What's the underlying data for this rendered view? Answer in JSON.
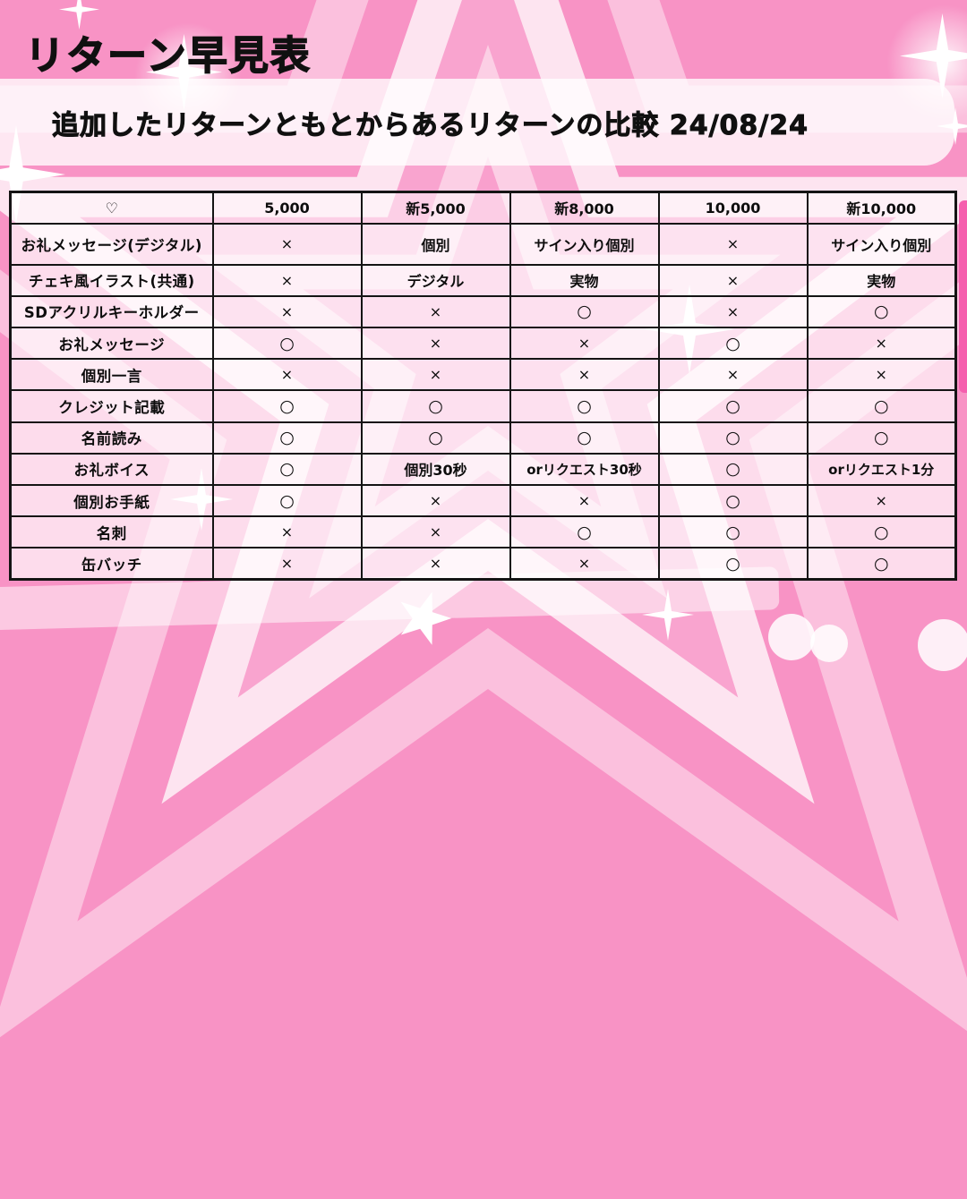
{
  "page": {
    "title": "リターン早見表",
    "subtitle": "追加したリターンともとからあるリターンの比較 24/08/24"
  },
  "chart_data": {
    "type": "table",
    "title": "リターン早見表",
    "subtitle": "追加したリターンともとからあるリターンの比較 24/08/24",
    "columns": [
      "♡",
      "5,000",
      "新5,000",
      "新8,000",
      "10,000",
      "新10,000"
    ],
    "rows": [
      {
        "label": "お礼メッセージ(デジタル)",
        "values": [
          "×",
          "個別",
          "サイン入り個別",
          "×",
          "サイン入り個別"
        ]
      },
      {
        "label": "チェキ風イラスト(共通)",
        "values": [
          "×",
          "デジタル",
          "実物",
          "×",
          "実物"
        ]
      },
      {
        "label": "SDアクリルキーホルダー",
        "values": [
          "×",
          "×",
          "○",
          "×",
          "○"
        ]
      },
      {
        "label": "お礼メッセージ",
        "values": [
          "○",
          "×",
          "×",
          "○",
          "×"
        ]
      },
      {
        "label": "個別一言",
        "values": [
          "×",
          "×",
          "×",
          "×",
          "×"
        ]
      },
      {
        "label": "クレジット記載",
        "values": [
          "○",
          "○",
          "○",
          "○",
          "○"
        ]
      },
      {
        "label": "名前読み",
        "values": [
          "○",
          "○",
          "○",
          "○",
          "○"
        ]
      },
      {
        "label": "お礼ボイス",
        "values": [
          "○",
          "個別30秒",
          "orリクエスト30秒",
          "○",
          "orリクエスト1分"
        ]
      },
      {
        "label": "個別お手紙",
        "values": [
          "○",
          "×",
          "×",
          "○",
          "×"
        ]
      },
      {
        "label": "名刺",
        "values": [
          "×",
          "×",
          "○",
          "○",
          "○"
        ]
      },
      {
        "label": "缶バッチ",
        "values": [
          "×",
          "×",
          "×",
          "○",
          "○"
        ]
      }
    ]
  },
  "colors": {
    "background_pink": "#F893C5",
    "star_light_pink": "#FBC0DD",
    "star_pale": "#FDE4F0",
    "banner_white": "rgba(255,255,255,0.78)",
    "table_border": "#141414",
    "text": "#101010",
    "accent_hot_pink": "#F55FAE"
  }
}
